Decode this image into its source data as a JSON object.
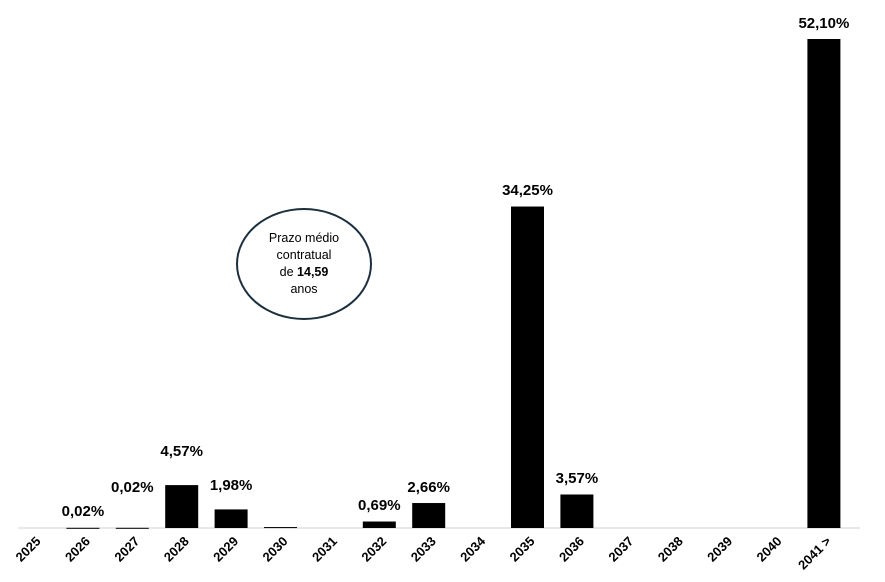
{
  "chart_data": {
    "type": "bar",
    "categories": [
      "2025",
      "2026",
      "2027",
      "2028",
      "2029",
      "2030",
      "2031",
      "2032",
      "2033",
      "2034",
      "2035",
      "2036",
      "2037",
      "2038",
      "2039",
      "2040",
      "2041 >"
    ],
    "values": [
      0,
      0.02,
      0.02,
      4.57,
      1.98,
      0.1,
      0,
      0.69,
      2.66,
      0,
      34.25,
      3.57,
      0,
      0,
      0,
      0,
      52.1
    ],
    "data_labels": [
      "",
      "0,02%",
      "0,02%",
      "4,57%",
      "1,98%",
      "",
      "",
      "0,69%",
      "2,66%",
      "",
      "34,25%",
      "3,57%",
      "",
      "",
      "",
      "",
      "52,10%"
    ],
    "ylim": [
      0,
      52.1
    ],
    "bar_color": "#000000",
    "grid": false,
    "legend": "none"
  },
  "callout": {
    "line1": "Prazo médio",
    "line2": "contratual",
    "line3_prefix": "de ",
    "line3_value": "14,59",
    "line4": "anos"
  }
}
